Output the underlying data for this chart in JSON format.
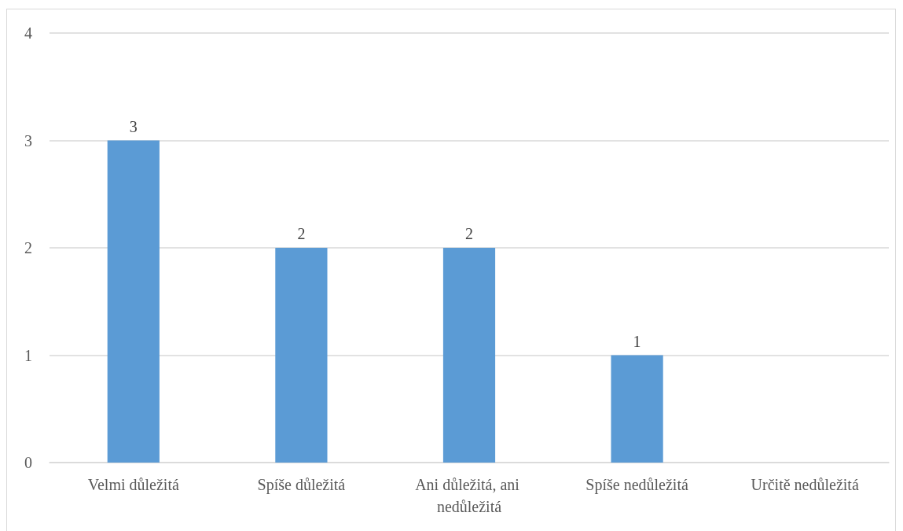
{
  "chart_data": {
    "type": "bar",
    "categories": [
      "Velmi důležitá",
      "Spíše důležitá",
      "Ani důležitá, ani nedůležitá",
      "Spíše nedůležitá",
      "Určitě nedůležitá"
    ],
    "values": [
      3,
      2,
      2,
      1,
      0
    ],
    "color": "#5b9bd5",
    "value_labels": [
      "3",
      "2",
      "2",
      "1",
      null
    ],
    "ylim": [
      0,
      4
    ],
    "yticks": [
      0,
      1,
      2,
      3,
      4
    ],
    "grid": "y"
  }
}
